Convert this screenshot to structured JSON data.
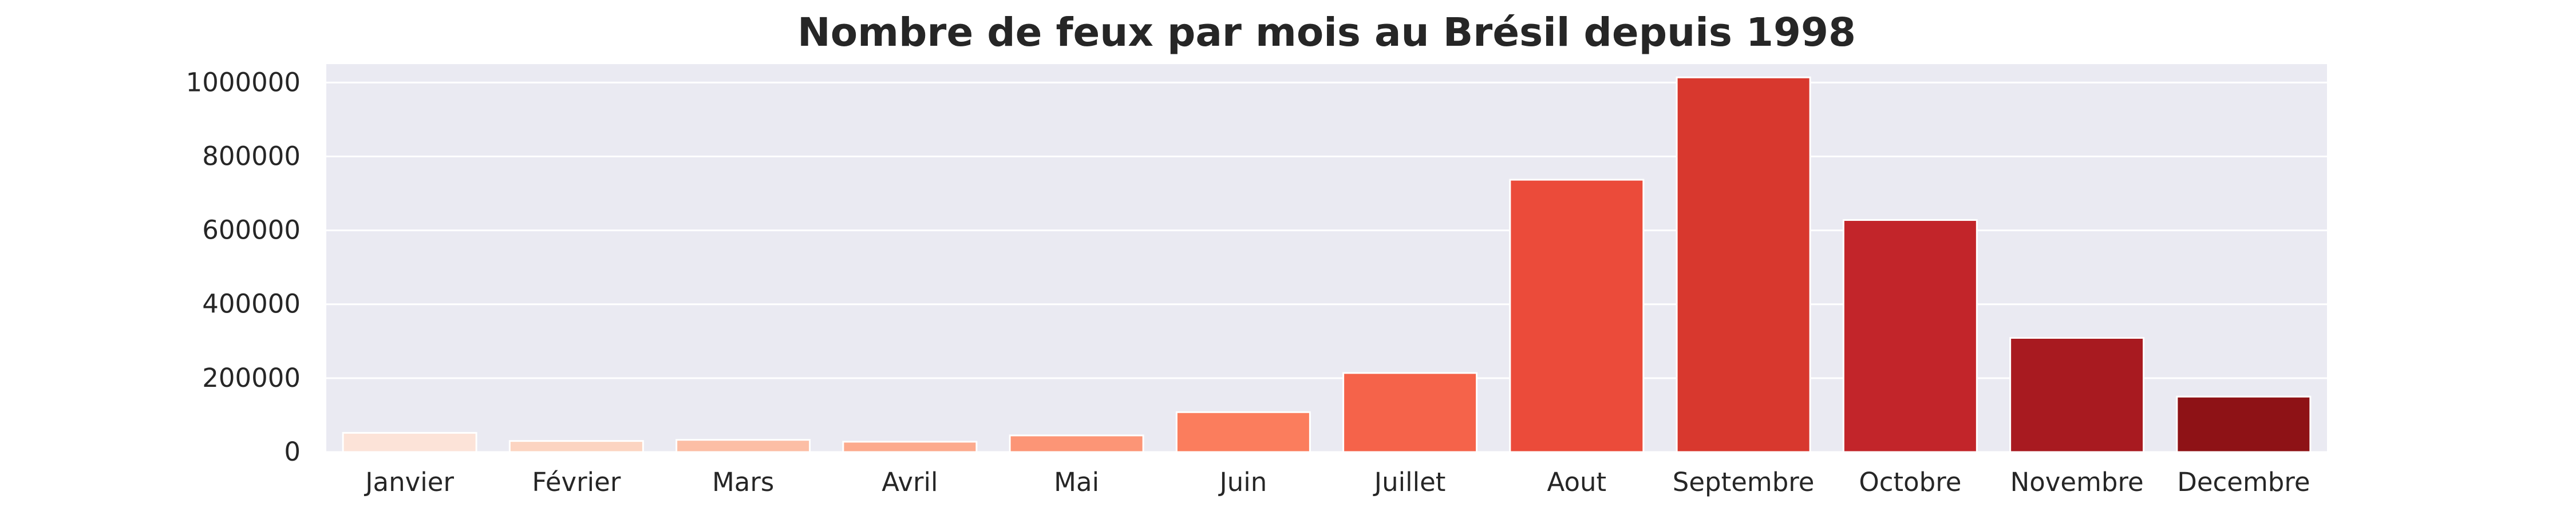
{
  "chart_data": {
    "type": "bar",
    "title": "Nombre de feux par mois au Brésil depuis 1998",
    "xlabel": "",
    "ylabel": "",
    "categories": [
      "Janvier",
      "Février",
      "Mars",
      "Avril",
      "Mai",
      "Juin",
      "Juillet",
      "Aout",
      "Septembre",
      "Octobre",
      "Novembre",
      "Decembre"
    ],
    "values": [
      52000,
      30000,
      33000,
      28000,
      45000,
      108000,
      214000,
      737000,
      1014000,
      628000,
      309000,
      150000
    ],
    "colors": [
      "#fce3d8",
      "#fcd4c1",
      "#fcbea5",
      "#fcaa8d",
      "#fc9576",
      "#fb7d5d",
      "#f5634a",
      "#eb4b3a",
      "#d8382e",
      "#c2252a",
      "#a81a20",
      "#8e1216"
    ],
    "ylim": [
      0,
      1050000
    ],
    "yticks": [
      "0",
      "200000",
      "400000",
      "600000",
      "800000",
      "1000000"
    ],
    "ytick_values": [
      0,
      200000,
      400000,
      600000,
      800000,
      1000000
    ],
    "grid": true,
    "plot_background": "#eaeaf2",
    "grid_color": "#ffffff"
  }
}
